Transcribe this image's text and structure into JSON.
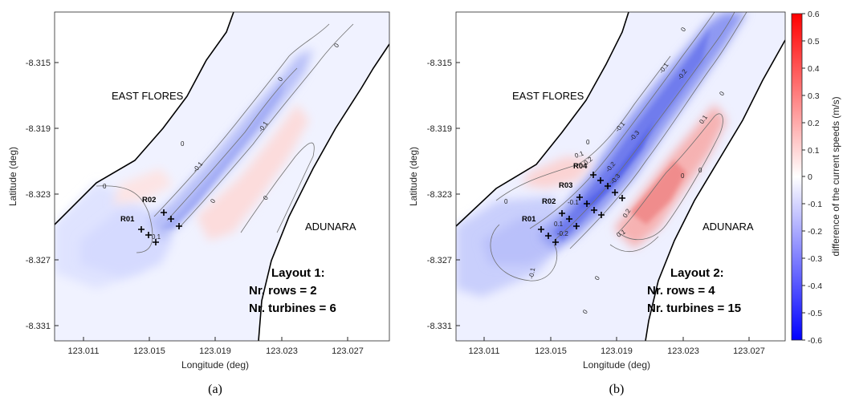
{
  "colors": {
    "blue_extreme": "#0000ff",
    "red_extreme": "#ff0000",
    "neutral": "#ffffff",
    "coastline": "#000000",
    "contour": "#707070"
  },
  "panels": [
    {
      "caption": "(a)",
      "place_labels": [
        "EAST FLORES",
        "ADUNARA"
      ],
      "row_labels": [
        "R01",
        "R02"
      ],
      "layout_text": [
        "Layout 1:",
        "Nr. rows = 2",
        "Nr. turbines = 6"
      ],
      "layout_name": "Layout 1",
      "nr_rows": 2,
      "nr_turbines": 6,
      "contour_labels": [
        "0",
        "0",
        "-0.1",
        "-0.1",
        "0",
        "0",
        "0",
        "0.1",
        "0"
      ],
      "xlabel": "Longitude (deg)",
      "ylabel": "Latitude (deg)",
      "xticks": [
        "123.011",
        "123.015",
        "123.019",
        "123.023",
        "123.027"
      ],
      "yticks": [
        "-8.315",
        "-8.319",
        "-8.323",
        "-8.327",
        "-8.331"
      ]
    },
    {
      "caption": "(b)",
      "place_labels": [
        "EAST FLORES",
        "ADUNARA"
      ],
      "row_labels": [
        "R01",
        "R02",
        "R03",
        "R04"
      ],
      "layout_text": [
        "Layout 2:",
        "Nr. rows = 4",
        "Nr. turbines = 15"
      ],
      "layout_name": "Layout 2",
      "nr_rows": 4,
      "nr_turbines": 15,
      "contour_labels": [
        "0",
        "0",
        "-0.1",
        "-0.2",
        "-0.1",
        "-0.3",
        "-0.2",
        "0.1",
        "-0.2",
        "-0.3",
        "0.1",
        "0",
        "0.2",
        "0.1",
        "0",
        "-0.1",
        "0",
        "0",
        "0",
        "0.1",
        "-0.2",
        "-0.1",
        "0"
      ],
      "xlabel": "Longitude (deg)",
      "ylabel": "Latitude (deg)",
      "xticks": [
        "123.011",
        "123.015",
        "123.019",
        "123.023",
        "123.027"
      ],
      "yticks": [
        "-8.315",
        "-8.319",
        "-8.323",
        "-8.327",
        "-8.331"
      ]
    }
  ],
  "colorbar": {
    "label": "difference of the current speeds (m/s)",
    "ticks": [
      "0.6",
      "0.5",
      "0.4",
      "0.3",
      "0.2",
      "0.1",
      "0",
      "-0.1",
      "-0.2",
      "-0.3",
      "-0.4",
      "-0.5",
      "-0.6"
    ],
    "min": -0.6,
    "max": 0.6
  }
}
